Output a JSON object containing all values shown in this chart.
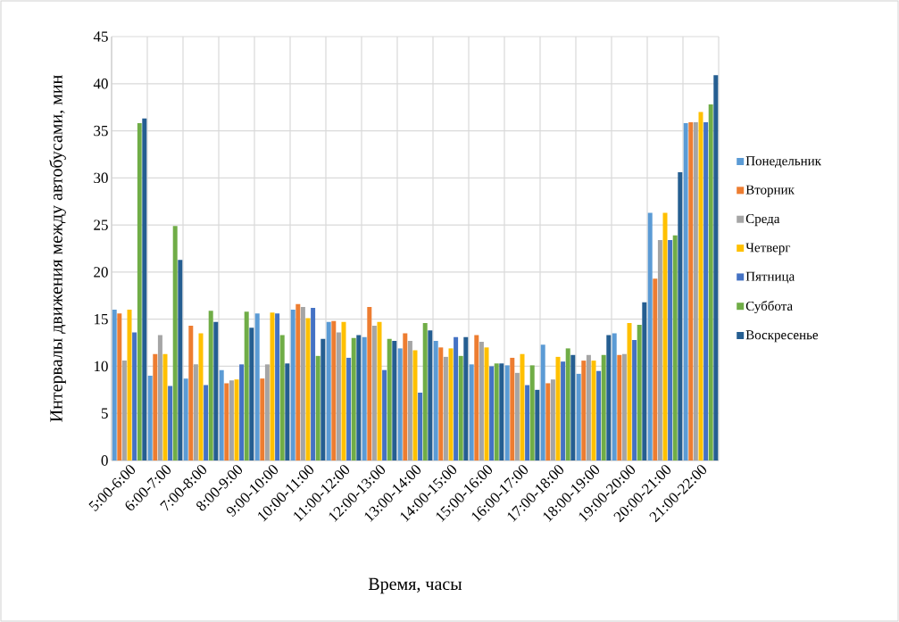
{
  "chart_data": {
    "type": "bar",
    "xlabel": "Время, часы",
    "ylabel": "Интервалы движения между автобусами, мин",
    "categories": [
      "5:00-6:00",
      "6:00-7:00",
      "7:00-8:00",
      "8:00-9:00",
      "9:00-10:00",
      "10:00-11:00",
      "11:00-12:00",
      "12:00-13:00",
      "13:00-14:00",
      "14:00-15:00",
      "15:00-16:00",
      "16:00-17:00",
      "17:00-18:00",
      "18:00-19:00",
      "19:00-20:00",
      "20:00-21:00",
      "21:00-22:00"
    ],
    "series": [
      {
        "name": "Понедельник",
        "color": "#5b9bd5",
        "values": [
          16,
          9,
          8.7,
          9.6,
          15.6,
          16,
          14.7,
          13.1,
          11.9,
          12.7,
          10.2,
          10.1,
          12.3,
          9.2,
          13.5,
          26.3,
          35.8
        ]
      },
      {
        "name": "Вторник",
        "color": "#ed7d31",
        "values": [
          15.6,
          11.3,
          14.3,
          8.2,
          8.7,
          16.6,
          14.8,
          16.3,
          13.5,
          12,
          13.3,
          10.9,
          8.2,
          10.6,
          11.2,
          19.3,
          35.9
        ]
      },
      {
        "name": "Среда",
        "color": "#a5a5a5",
        "values": [
          10.6,
          13.3,
          10.2,
          8.5,
          10.2,
          16.3,
          13.6,
          14.3,
          12.7,
          11,
          12.6,
          9.3,
          8.6,
          11.2,
          11.3,
          23.4,
          35.9
        ]
      },
      {
        "name": "Четверг",
        "color": "#ffc000",
        "values": [
          16,
          11.3,
          13.5,
          8.6,
          15.7,
          15.1,
          14.7,
          14.7,
          11.7,
          11.9,
          12,
          11.3,
          11,
          10.6,
          14.6,
          26.3,
          37
        ]
      },
      {
        "name": "Пятница",
        "color": "#4472c4",
        "values": [
          13.6,
          7.9,
          8,
          10.2,
          15.6,
          16.2,
          10.9,
          9.6,
          7.2,
          13.1,
          10,
          8,
          10.5,
          9.5,
          12.8,
          23.4,
          35.9
        ]
      },
      {
        "name": "Суббота",
        "color": "#70ad47",
        "values": [
          35.8,
          24.9,
          15.9,
          15.8,
          13.3,
          11.1,
          13,
          12.9,
          14.6,
          11.1,
          10.3,
          10.1,
          11.9,
          11.2,
          14.4,
          23.9,
          37.8
        ]
      },
      {
        "name": "Воскресенье",
        "color": "#255e91",
        "values": [
          36.3,
          21.3,
          14.7,
          14.1,
          10.3,
          12.9,
          13.3,
          12.7,
          13.8,
          13.1,
          10.3,
          7.5,
          11.2,
          13.3,
          16.8,
          30.6,
          40.9
        ]
      }
    ],
    "ylim": [
      0,
      45
    ],
    "yticks": [
      0,
      5,
      10,
      15,
      20,
      25,
      30,
      35,
      40,
      45
    ],
    "grid": true,
    "legend": "right"
  }
}
